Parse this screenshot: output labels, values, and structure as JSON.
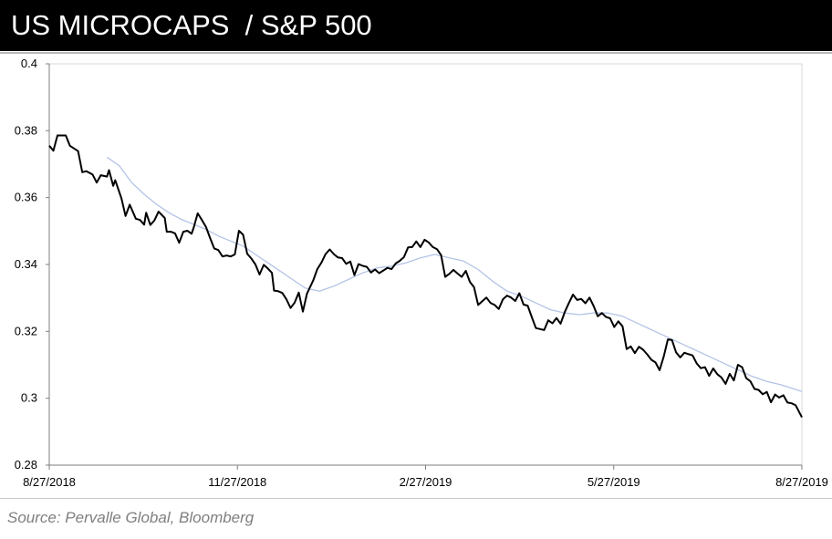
{
  "header": {
    "title": "US MICROCAPS  / S&P 500"
  },
  "source": "Source: Pervalle Global, Bloomberg",
  "colors": {
    "main_line": "#000000",
    "moving_average": "#b4c3e6",
    "title_bg": "#000000"
  },
  "chart_data": {
    "type": "line",
    "title": "US MICROCAPS  / S&P 500",
    "xlabel": "",
    "ylabel": "",
    "ylim": [
      0.28,
      0.4
    ],
    "y_ticks": [
      0.28,
      0.3,
      0.32,
      0.34,
      0.36,
      0.38,
      0.4
    ],
    "y_tick_labels": [
      "0.28",
      "0.3",
      "0.32",
      "0.34",
      "0.36",
      "0.38",
      "0.4"
    ],
    "xlim": [
      "2018-08-27",
      "2019-08-27"
    ],
    "x_tick_labels": [
      "8/27/2018",
      "11/27/2018",
      "2/27/2019",
      "5/27/2019",
      "8/27/2019"
    ],
    "grid": false,
    "legend": "none",
    "series": [
      {
        "key": "ratio",
        "color": "#000000",
        "points": [
          [
            "2018-08-27",
            0.3755
          ],
          [
            "2018-08-29",
            0.374
          ],
          [
            "2018-08-31",
            0.3786
          ],
          [
            "2018-09-04",
            0.3786
          ],
          [
            "2018-09-06",
            0.3755
          ],
          [
            "2018-09-10",
            0.3739
          ],
          [
            "2018-09-12",
            0.3676
          ],
          [
            "2018-09-14",
            0.3679
          ],
          [
            "2018-09-17",
            0.3669
          ],
          [
            "2018-09-19",
            0.3645
          ],
          [
            "2018-09-21",
            0.3667
          ],
          [
            "2018-09-24",
            0.3663
          ],
          [
            "2018-09-25",
            0.3682
          ],
          [
            "2018-09-27",
            0.3635
          ],
          [
            "2018-09-28",
            0.3652
          ],
          [
            "2018-10-01",
            0.3598
          ],
          [
            "2018-10-03",
            0.3545
          ],
          [
            "2018-10-05",
            0.3579
          ],
          [
            "2018-10-08",
            0.3537
          ],
          [
            "2018-10-10",
            0.3533
          ],
          [
            "2018-10-12",
            0.3519
          ],
          [
            "2018-10-13",
            0.3555
          ],
          [
            "2018-10-15",
            0.3518
          ],
          [
            "2018-10-17",
            0.3532
          ],
          [
            "2018-10-19",
            0.3558
          ],
          [
            "2018-10-22",
            0.3539
          ],
          [
            "2018-10-23",
            0.3498
          ],
          [
            "2018-10-25",
            0.3498
          ],
          [
            "2018-10-27",
            0.3493
          ],
          [
            "2018-10-29",
            0.3465
          ],
          [
            "2018-10-31",
            0.3498
          ],
          [
            "2018-11-02",
            0.3501
          ],
          [
            "2018-11-04",
            0.3492
          ],
          [
            "2018-11-05",
            0.3509
          ],
          [
            "2018-11-07",
            0.3553
          ],
          [
            "2018-11-09",
            0.3533
          ],
          [
            "2018-11-11",
            0.3512
          ],
          [
            "2018-11-13",
            0.3479
          ],
          [
            "2018-11-15",
            0.3448
          ],
          [
            "2018-11-17",
            0.3443
          ],
          [
            "2018-11-19",
            0.3424
          ],
          [
            "2018-11-21",
            0.3427
          ],
          [
            "2018-11-23",
            0.3424
          ],
          [
            "2018-11-25",
            0.343
          ],
          [
            "2018-11-27",
            0.3501
          ],
          [
            "2018-11-29",
            0.3489
          ],
          [
            "2018-12-01",
            0.3432
          ],
          [
            "2018-12-03",
            0.3418
          ],
          [
            "2018-12-05",
            0.34
          ],
          [
            "2018-12-07",
            0.337
          ],
          [
            "2018-12-09",
            0.3399
          ],
          [
            "2018-12-11",
            0.3388
          ],
          [
            "2018-12-13",
            0.3375
          ],
          [
            "2018-12-14",
            0.3322
          ],
          [
            "2018-12-16",
            0.332
          ],
          [
            "2018-12-18",
            0.3315
          ],
          [
            "2018-12-20",
            0.3296
          ],
          [
            "2018-12-22",
            0.327
          ],
          [
            "2018-12-24",
            0.3286
          ],
          [
            "2018-12-26",
            0.3316
          ],
          [
            "2018-12-28",
            0.3259
          ],
          [
            "2018-12-30",
            0.3313
          ],
          [
            "2019-01-02",
            0.3352
          ],
          [
            "2019-01-04",
            0.3386
          ],
          [
            "2019-01-06",
            0.3406
          ],
          [
            "2019-01-08",
            0.3431
          ],
          [
            "2019-01-10",
            0.3445
          ],
          [
            "2019-01-12",
            0.3431
          ],
          [
            "2019-01-14",
            0.3421
          ],
          [
            "2019-01-16",
            0.3419
          ],
          [
            "2019-01-18",
            0.3402
          ],
          [
            "2019-01-20",
            0.3409
          ],
          [
            "2019-01-22",
            0.3368
          ],
          [
            "2019-01-24",
            0.3401
          ],
          [
            "2019-01-26",
            0.3396
          ],
          [
            "2019-01-28",
            0.3393
          ],
          [
            "2019-01-30",
            0.3376
          ],
          [
            "2019-02-01",
            0.3385
          ],
          [
            "2019-02-03",
            0.3374
          ],
          [
            "2019-02-05",
            0.3382
          ],
          [
            "2019-02-07",
            0.339
          ],
          [
            "2019-02-09",
            0.3386
          ],
          [
            "2019-02-11",
            0.3403
          ],
          [
            "2019-02-13",
            0.3411
          ],
          [
            "2019-02-15",
            0.3422
          ],
          [
            "2019-02-17",
            0.3451
          ],
          [
            "2019-02-19",
            0.3452
          ],
          [
            "2019-02-21",
            0.3469
          ],
          [
            "2019-02-23",
            0.3452
          ],
          [
            "2019-02-25",
            0.3474
          ],
          [
            "2019-02-27",
            0.3466
          ],
          [
            "2019-03-01",
            0.3452
          ],
          [
            "2019-03-03",
            0.3446
          ],
          [
            "2019-03-05",
            0.3428
          ],
          [
            "2019-03-07",
            0.3363
          ],
          [
            "2019-03-09",
            0.3372
          ],
          [
            "2019-03-11",
            0.3384
          ],
          [
            "2019-03-13",
            0.3373
          ],
          [
            "2019-03-15",
            0.3363
          ],
          [
            "2019-03-17",
            0.3381
          ],
          [
            "2019-03-19",
            0.3348
          ],
          [
            "2019-03-21",
            0.3332
          ],
          [
            "2019-03-23",
            0.3279
          ],
          [
            "2019-03-25",
            0.329
          ],
          [
            "2019-03-27",
            0.3301
          ],
          [
            "2019-03-29",
            0.3285
          ],
          [
            "2019-03-31",
            0.3279
          ],
          [
            "2019-04-02",
            0.3267
          ],
          [
            "2019-04-04",
            0.3296
          ],
          [
            "2019-04-06",
            0.3307
          ],
          [
            "2019-04-08",
            0.3301
          ],
          [
            "2019-04-10",
            0.3291
          ],
          [
            "2019-04-12",
            0.3314
          ],
          [
            "2019-04-14",
            0.328
          ],
          [
            "2019-04-16",
            0.3277
          ],
          [
            "2019-04-18",
            0.3243
          ],
          [
            "2019-04-20",
            0.321
          ],
          [
            "2019-04-22",
            0.3207
          ],
          [
            "2019-04-24",
            0.3204
          ],
          [
            "2019-04-26",
            0.3233
          ],
          [
            "2019-04-28",
            0.3224
          ],
          [
            "2019-04-30",
            0.324
          ],
          [
            "2019-05-02",
            0.3223
          ],
          [
            "2019-05-04",
            0.3258
          ],
          [
            "2019-05-06",
            0.3285
          ],
          [
            "2019-05-08",
            0.331
          ],
          [
            "2019-05-10",
            0.3294
          ],
          [
            "2019-05-12",
            0.3297
          ],
          [
            "2019-05-14",
            0.3284
          ],
          [
            "2019-05-16",
            0.3301
          ],
          [
            "2019-05-18",
            0.3276
          ],
          [
            "2019-05-20",
            0.3245
          ],
          [
            "2019-05-22",
            0.3255
          ],
          [
            "2019-05-24",
            0.3243
          ],
          [
            "2019-05-26",
            0.3239
          ],
          [
            "2019-05-28",
            0.3213
          ],
          [
            "2019-05-30",
            0.323
          ],
          [
            "2019-06-01",
            0.3215
          ],
          [
            "2019-06-03",
            0.3147
          ],
          [
            "2019-06-05",
            0.3155
          ],
          [
            "2019-06-07",
            0.3135
          ],
          [
            "2019-06-09",
            0.3154
          ],
          [
            "2019-06-11",
            0.3145
          ],
          [
            "2019-06-13",
            0.3131
          ],
          [
            "2019-06-15",
            0.3115
          ],
          [
            "2019-06-17",
            0.3107
          ],
          [
            "2019-06-19",
            0.3084
          ],
          [
            "2019-06-21",
            0.3125
          ],
          [
            "2019-06-23",
            0.3176
          ],
          [
            "2019-06-25",
            0.3174
          ],
          [
            "2019-06-27",
            0.3137
          ],
          [
            "2019-06-29",
            0.3122
          ],
          [
            "2019-07-01",
            0.3136
          ],
          [
            "2019-07-03",
            0.3132
          ],
          [
            "2019-07-05",
            0.3128
          ],
          [
            "2019-07-07",
            0.3104
          ],
          [
            "2019-07-09",
            0.309
          ],
          [
            "2019-07-11",
            0.3093
          ],
          [
            "2019-07-13",
            0.3067
          ],
          [
            "2019-07-15",
            0.3089
          ],
          [
            "2019-07-17",
            0.3072
          ],
          [
            "2019-07-19",
            0.3062
          ],
          [
            "2019-07-21",
            0.3043
          ],
          [
            "2019-07-23",
            0.3073
          ],
          [
            "2019-07-25",
            0.3053
          ],
          [
            "2019-07-27",
            0.31
          ],
          [
            "2019-07-29",
            0.3093
          ],
          [
            "2019-07-31",
            0.306
          ],
          [
            "2019-08-02",
            0.3051
          ],
          [
            "2019-08-04",
            0.3028
          ],
          [
            "2019-08-06",
            0.3025
          ],
          [
            "2019-08-08",
            0.3012
          ],
          [
            "2019-08-10",
            0.3019
          ],
          [
            "2019-08-12",
            0.2988
          ],
          [
            "2019-08-14",
            0.3011
          ],
          [
            "2019-08-16",
            0.3002
          ],
          [
            "2019-08-18",
            0.3009
          ],
          [
            "2019-08-20",
            0.2987
          ],
          [
            "2019-08-22",
            0.2985
          ],
          [
            "2019-08-24",
            0.2979
          ],
          [
            "2019-08-27",
            0.2943
          ]
        ]
      },
      {
        "key": "moving_average",
        "color": "#b4c3e6",
        "points": [
          [
            "2018-09-24",
            0.3721
          ],
          [
            "2018-09-30",
            0.3695
          ],
          [
            "2018-10-06",
            0.3645
          ],
          [
            "2018-10-12",
            0.361
          ],
          [
            "2018-10-18",
            0.358
          ],
          [
            "2018-10-24",
            0.3555
          ],
          [
            "2018-10-30",
            0.3535
          ],
          [
            "2018-11-05",
            0.352
          ],
          [
            "2018-11-11",
            0.3505
          ],
          [
            "2018-11-17",
            0.3485
          ],
          [
            "2018-11-23",
            0.347
          ],
          [
            "2018-11-29",
            0.3455
          ],
          [
            "2018-12-05",
            0.343
          ],
          [
            "2018-12-11",
            0.3405
          ],
          [
            "2018-12-17",
            0.338
          ],
          [
            "2018-12-23",
            0.3355
          ],
          [
            "2018-12-29",
            0.333
          ],
          [
            "2019-01-05",
            0.332
          ],
          [
            "2019-01-12",
            0.3335
          ],
          [
            "2019-01-19",
            0.3355
          ],
          [
            "2019-01-26",
            0.3375
          ],
          [
            "2019-02-02",
            0.339
          ],
          [
            "2019-02-09",
            0.3395
          ],
          [
            "2019-02-16",
            0.3405
          ],
          [
            "2019-02-23",
            0.342
          ],
          [
            "2019-03-02",
            0.343
          ],
          [
            "2019-03-09",
            0.342
          ],
          [
            "2019-03-16",
            0.341
          ],
          [
            "2019-03-23",
            0.3385
          ],
          [
            "2019-03-30",
            0.335
          ],
          [
            "2019-04-06",
            0.332
          ],
          [
            "2019-04-13",
            0.3305
          ],
          [
            "2019-04-20",
            0.3285
          ],
          [
            "2019-04-27",
            0.3265
          ],
          [
            "2019-05-04",
            0.3255
          ],
          [
            "2019-05-11",
            0.325
          ],
          [
            "2019-05-18",
            0.3255
          ],
          [
            "2019-05-25",
            0.3255
          ],
          [
            "2019-06-01",
            0.3245
          ],
          [
            "2019-06-08",
            0.3225
          ],
          [
            "2019-06-15",
            0.3205
          ],
          [
            "2019-06-22",
            0.3185
          ],
          [
            "2019-06-29",
            0.3165
          ],
          [
            "2019-07-06",
            0.3145
          ],
          [
            "2019-07-13",
            0.3125
          ],
          [
            "2019-07-20",
            0.3105
          ],
          [
            "2019-07-27",
            0.3085
          ],
          [
            "2019-08-03",
            0.3065
          ],
          [
            "2019-08-10",
            0.305
          ],
          [
            "2019-08-17",
            0.304
          ],
          [
            "2019-08-27",
            0.302
          ]
        ]
      }
    ]
  }
}
